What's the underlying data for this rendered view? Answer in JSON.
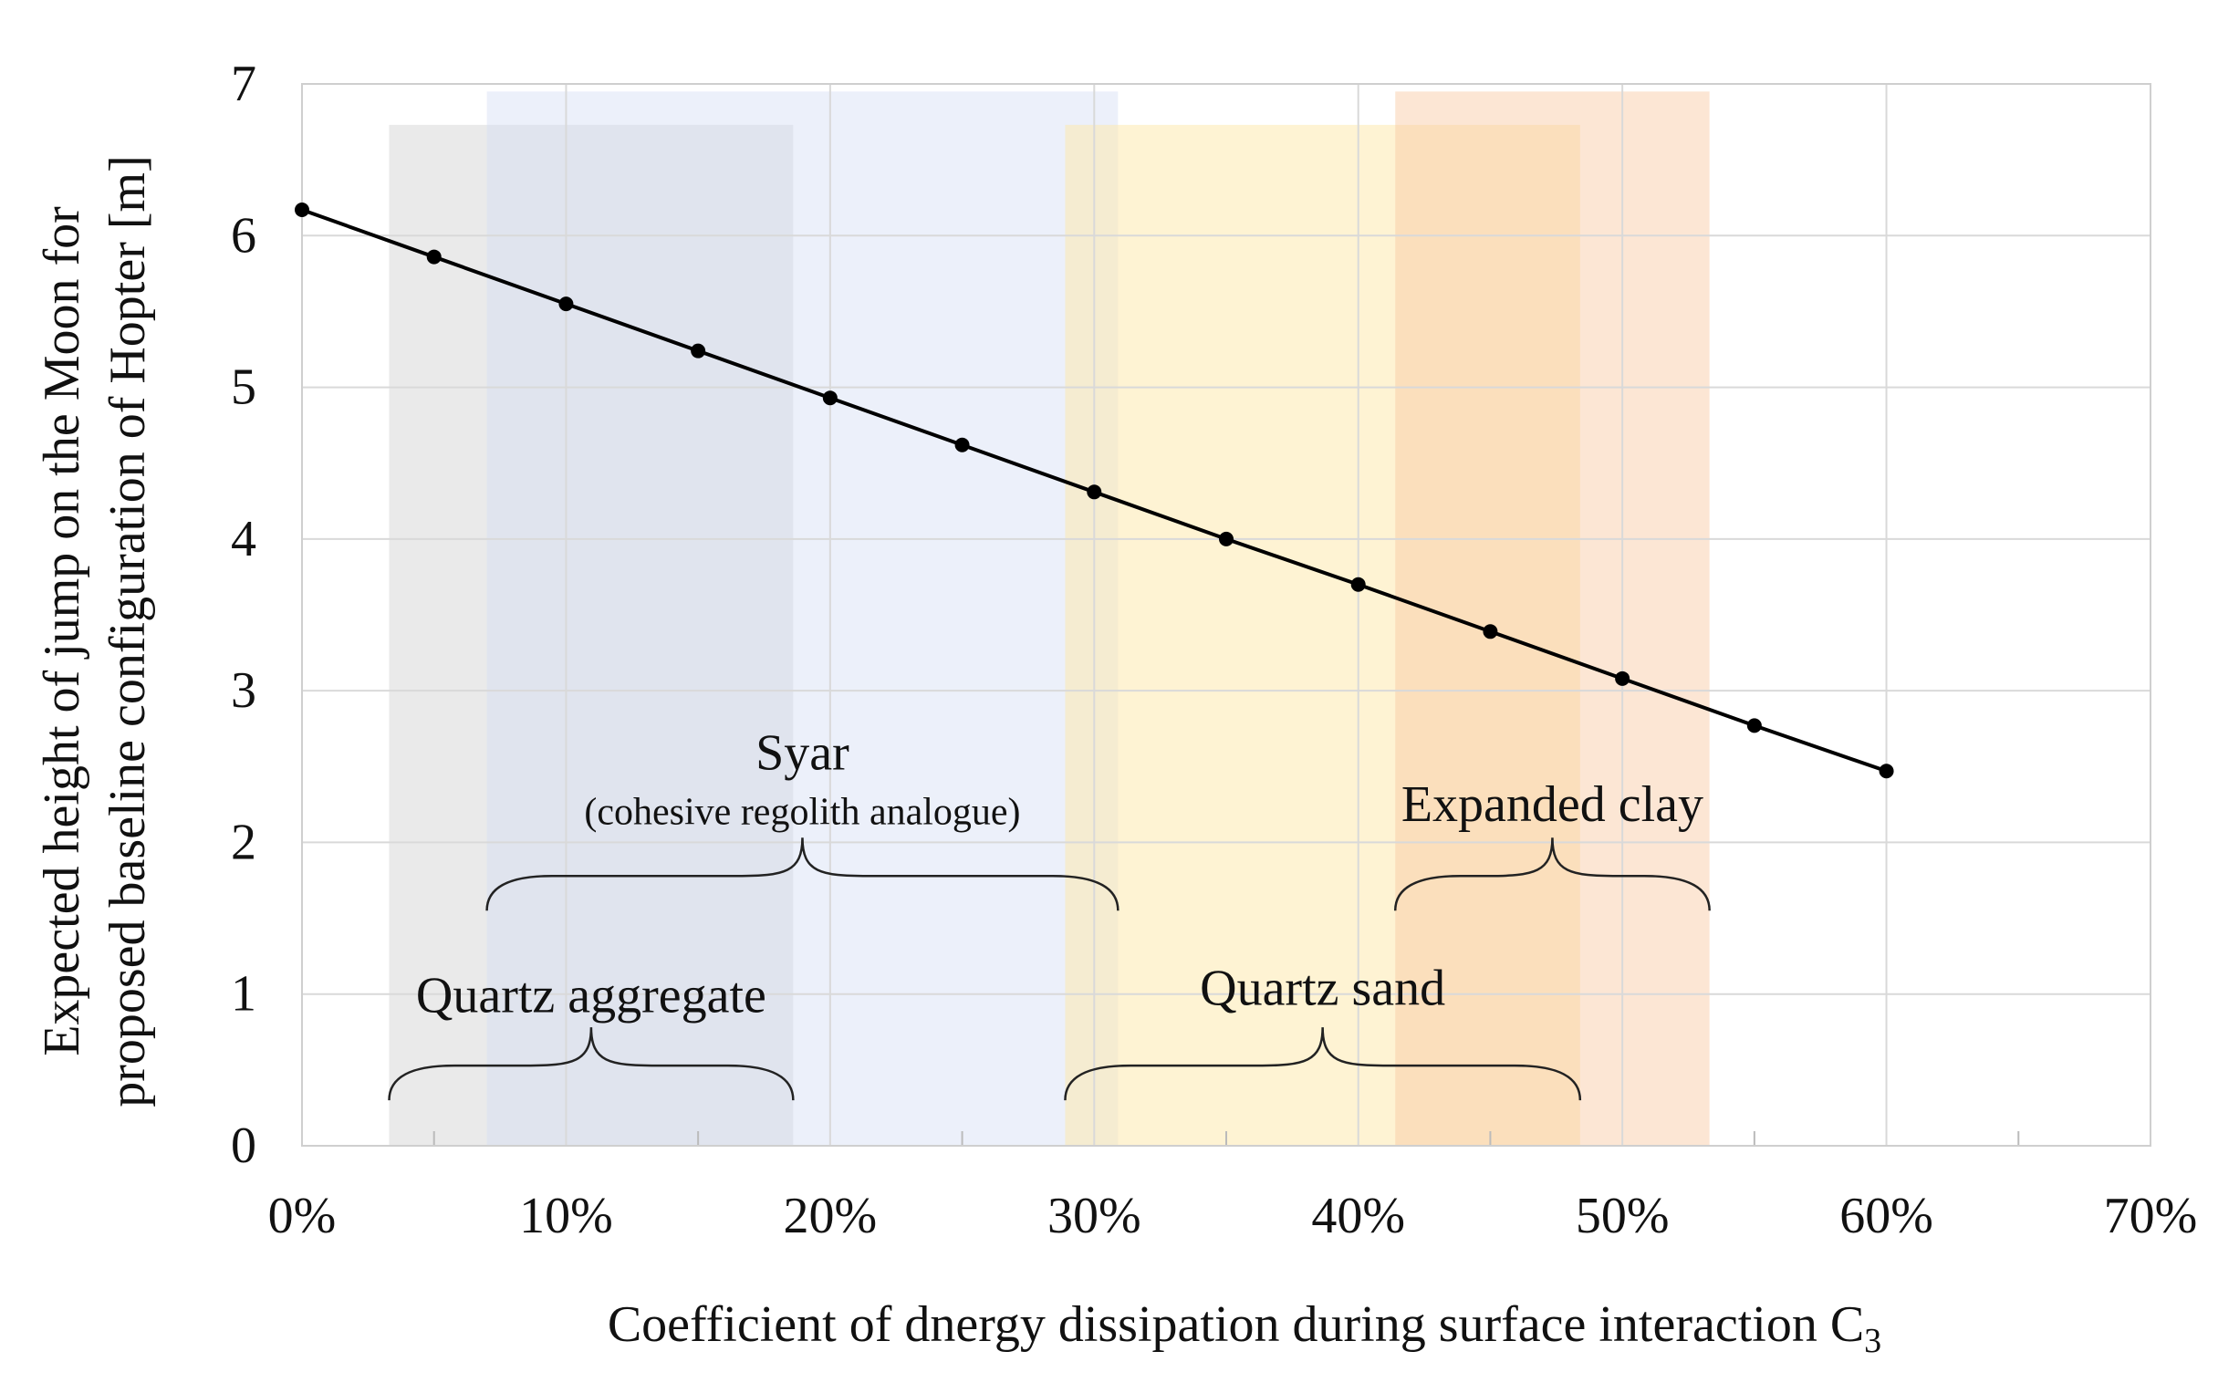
{
  "chart_data": {
    "type": "line",
    "title": "",
    "xlabel": "Coefficient of dnergy dissipation during surface interaction C",
    "xlabel_subscript": "3",
    "ylabel_line1": "Expected height of jump on the Moon for",
    "ylabel_line2": "proposed baseline configuration of Hopter [m]",
    "xlim": [
      0,
      70
    ],
    "ylim": [
      0,
      7
    ],
    "x_ticks": [
      0,
      10,
      20,
      30,
      40,
      50,
      60,
      70
    ],
    "x_tick_labels": [
      "0%",
      "10%",
      "20%",
      "30%",
      "40%",
      "50%",
      "60%",
      "70%"
    ],
    "y_ticks": [
      0,
      1,
      2,
      3,
      4,
      5,
      6,
      7
    ],
    "y_tick_labels": [
      "0",
      "1",
      "2",
      "3",
      "4",
      "5",
      "6",
      "7"
    ],
    "grid": true,
    "series": [
      {
        "color": "#000000",
        "marker": "circle",
        "x": [
          0,
          5,
          10,
          15,
          20,
          25,
          30,
          35,
          40,
          45,
          50,
          55,
          60
        ],
        "y": [
          6.17,
          5.86,
          5.55,
          5.24,
          4.93,
          4.62,
          4.31,
          4.0,
          3.7,
          3.39,
          3.08,
          2.77,
          2.47
        ]
      }
    ],
    "regions": [
      {
        "name": "quartz-aggregate",
        "label": "Quartz aggregate",
        "sublabel": "",
        "x_start": 3.3,
        "x_end": 18.6,
        "y_top": 6.73,
        "color": "#d6d6d6",
        "opacity": 0.5,
        "brace_y": 0.3,
        "label_y": 0.88
      },
      {
        "name": "syar",
        "label": "Syar",
        "sublabel": "(cohesive regolith analogue)",
        "x_start": 7.0,
        "x_end": 30.9,
        "y_top": 6.95,
        "color": "#d4def5",
        "opacity": 0.45,
        "brace_y": 1.55,
        "label_y": 2.48,
        "sublabel_y": 2.12
      },
      {
        "name": "quartz-sand",
        "label": "Quartz sand",
        "sublabel": "",
        "x_start": 28.9,
        "x_end": 48.4,
        "y_top": 6.73,
        "color": "#fde8a8",
        "opacity": 0.5,
        "brace_y": 0.3,
        "label_y": 0.93
      },
      {
        "name": "expanded-clay",
        "label": "Expanded clay",
        "sublabel": "",
        "x_start": 41.4,
        "x_end": 53.3,
        "y_top": 6.95,
        "color": "#f9c8a0",
        "opacity": 0.45,
        "brace_y": 1.55,
        "label_y": 2.14
      }
    ]
  }
}
